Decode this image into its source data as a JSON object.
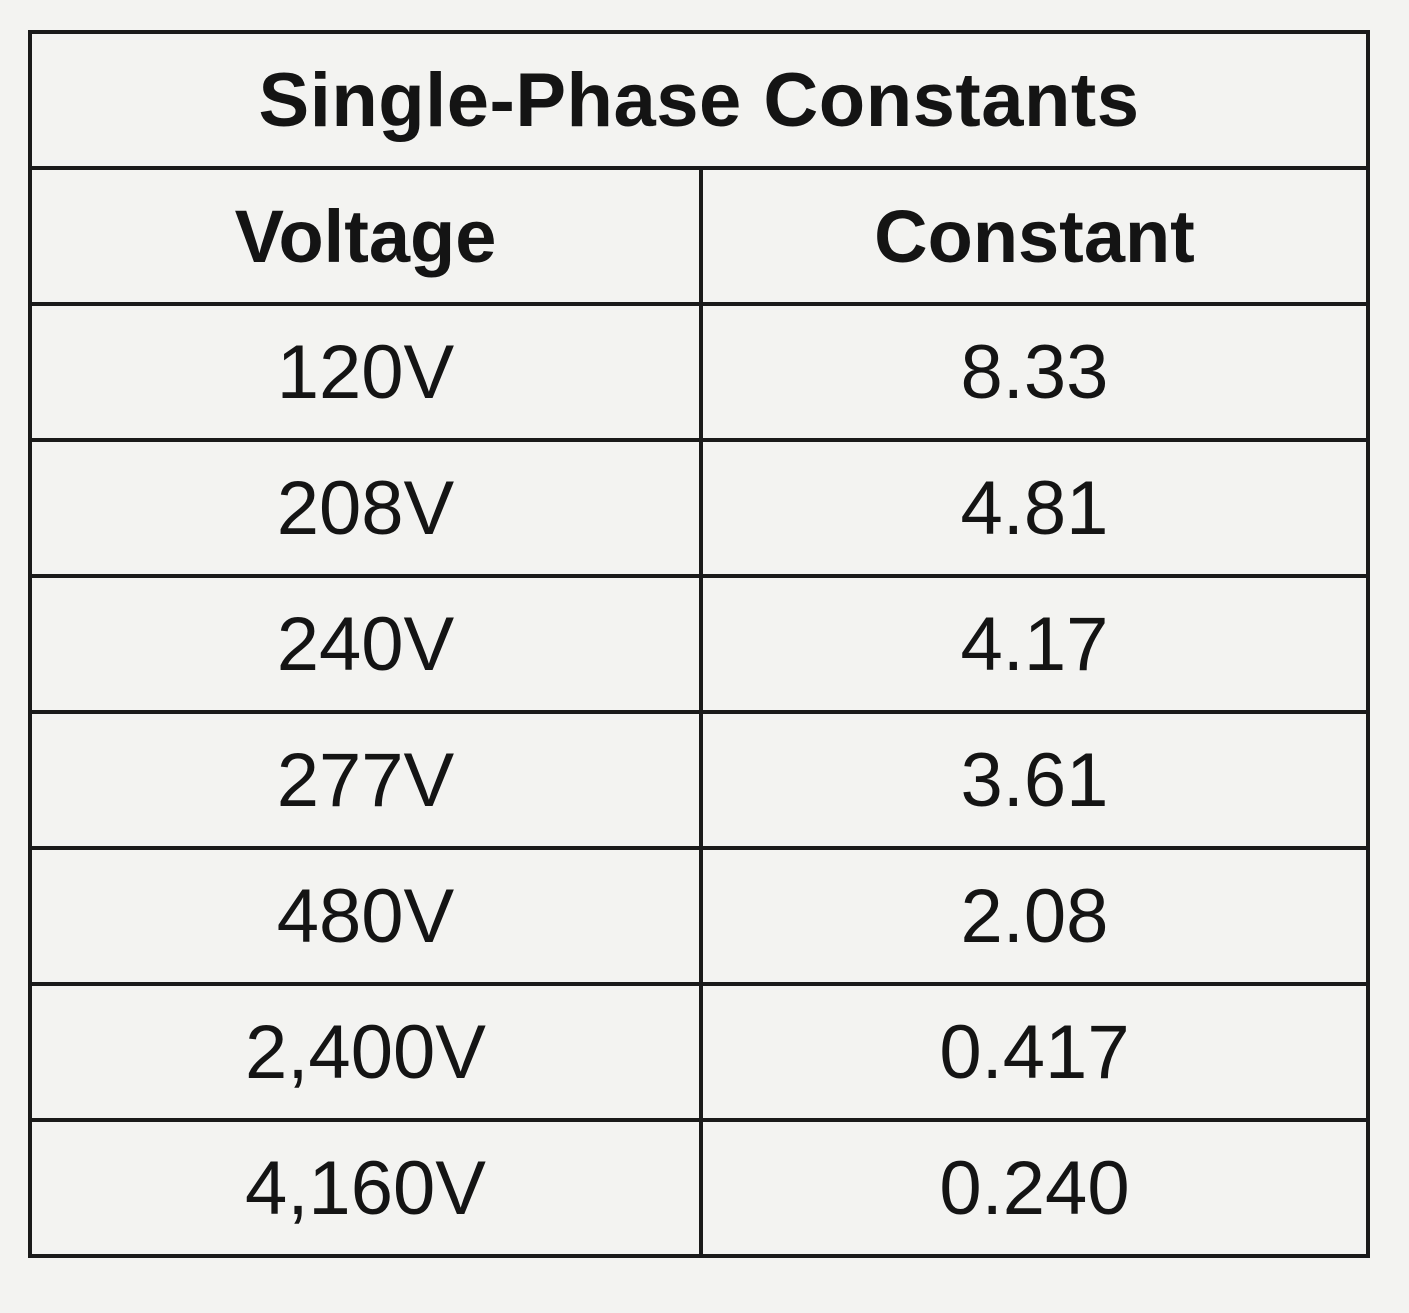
{
  "table": {
    "title": "Single-Phase Constants",
    "headers": [
      "Voltage",
      "Constant"
    ],
    "rows": [
      [
        "120V",
        "8.33"
      ],
      [
        "208V",
        "4.81"
      ],
      [
        "240V",
        "4.17"
      ],
      [
        "277V",
        "3.61"
      ],
      [
        "480V",
        "2.08"
      ],
      [
        "2,400V",
        "0.417"
      ],
      [
        "4,160V",
        "0.240"
      ]
    ]
  }
}
